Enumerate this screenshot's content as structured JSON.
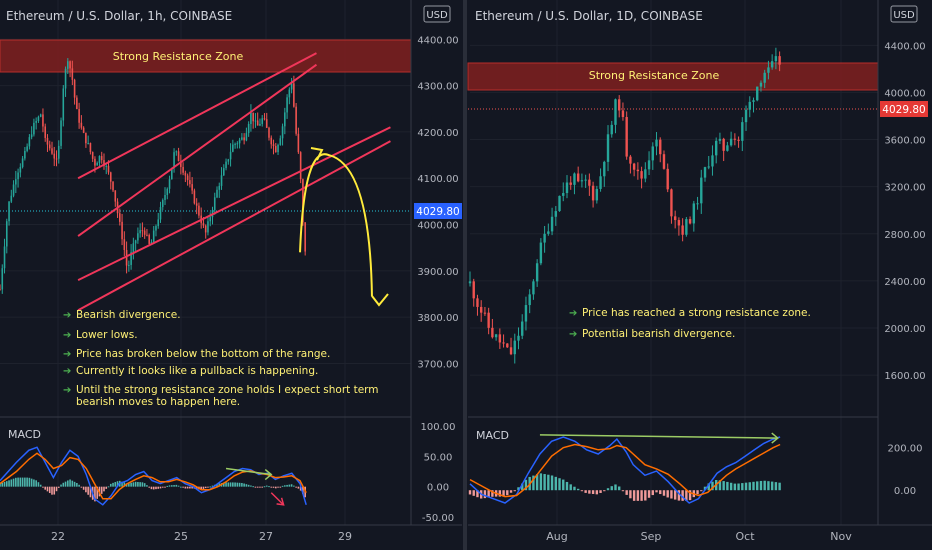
{
  "colors": {
    "background": "#131722",
    "up_candle": "#26a69a",
    "down_candle": "#ef5350",
    "channel": "#f0365a",
    "macd_line": "#2962ff",
    "signal_line": "#ff6d00",
    "resistance_fill": "#7a1f1f",
    "resistance_border": "#c9302c",
    "annotation_text": "#fff176",
    "arrow": "#ffeb3b",
    "bullet": "#4caf50",
    "price_tag": "#e53935",
    "divergence_line": "#9ccc65",
    "last_price_line": "#26c6da"
  },
  "left_panel": {
    "title": "Ethereum / U.S. Dollar, 1h, COINBASE",
    "currency_badge": "USD",
    "resistance_label": "Strong Resistance Zone",
    "price_tag": "4029.80",
    "macd_label": "MACD",
    "notes": [
      "Bearish divergence.",
      "Lower lows.",
      "Price has broken below the bottom of the range.",
      "Currently it looks like a pullback is happening.",
      "Until the strong resistance zone holds I expect short term bearish moves to happen here."
    ]
  },
  "right_panel": {
    "title": "Ethereum / U.S. Dollar, 1D, COINBASE",
    "currency_badge": "USD",
    "resistance_label": "Strong Resistance Zone",
    "price_tag": "4029.80",
    "macd_label": "MACD",
    "notes": [
      "Price has reached a strong resistance zone.",
      "Potential bearish divergence."
    ]
  },
  "chart_data": [
    {
      "type": "candlestick",
      "title": "Ethereum / U.S. Dollar, 1h, COINBASE",
      "y_ticks": [
        "4400.00",
        "4300.00",
        "4200.00",
        "4100.00",
        "4000.00",
        "3900.00",
        "3800.00",
        "3700.00"
      ],
      "x_ticks": [
        "22",
        "25",
        "27",
        "29"
      ],
      "ylim": [
        3660,
        4420
      ],
      "last_price": 4029.8,
      "resistance_zone": [
        4305,
        4375
      ],
      "close_path": [
        [
          0,
          3860
        ],
        [
          4,
          4040
        ],
        [
          8,
          4110
        ],
        [
          12,
          4150
        ],
        [
          16,
          4210
        ],
        [
          20,
          4240
        ],
        [
          22,
          4180
        ],
        [
          25,
          4160
        ],
        [
          28,
          4130
        ],
        [
          31,
          4310
        ],
        [
          33,
          4360
        ],
        [
          35,
          4320
        ],
        [
          37,
          4250
        ],
        [
          40,
          4200
        ],
        [
          43,
          4170
        ],
        [
          46,
          4130
        ],
        [
          49,
          4150
        ],
        [
          52,
          4120
        ],
        [
          55,
          4080
        ],
        [
          57,
          4030
        ],
        [
          60,
          3960
        ],
        [
          62,
          3900
        ],
        [
          64,
          3940
        ],
        [
          67,
          3980
        ],
        [
          70,
          3990
        ],
        [
          73,
          3950
        ],
        [
          76,
          4000
        ],
        [
          80,
          4060
        ],
        [
          83,
          4110
        ],
        [
          85,
          4160
        ],
        [
          88,
          4130
        ],
        [
          91,
          4100
        ],
        [
          94,
          4060
        ],
        [
          97,
          4020
        ],
        [
          100,
          3980
        ],
        [
          103,
          4030
        ],
        [
          106,
          4080
        ],
        [
          110,
          4130
        ],
        [
          113,
          4170
        ],
        [
          116,
          4180
        ],
        [
          119,
          4190
        ],
        [
          122,
          4240
        ],
        [
          125,
          4210
        ],
        [
          128,
          4230
        ],
        [
          131,
          4190
        ],
        [
          134,
          4160
        ],
        [
          137,
          4200
        ],
        [
          140,
          4280
        ],
        [
          142,
          4310
        ],
        [
          144,
          4200
        ],
        [
          146,
          4120
        ],
        [
          148,
          3950
        ],
        [
          149,
          3940
        ]
      ],
      "x_domain": [
        0,
        200
      ],
      "channel_lines": [
        [
          [
            38,
            4100
          ],
          [
            154,
            4370
          ]
        ],
        [
          [
            38,
            3975
          ],
          [
            154,
            4345
          ]
        ],
        [
          [
            38,
            3880
          ],
          [
            190,
            4210
          ]
        ],
        [
          [
            38,
            3815
          ],
          [
            190,
            4180
          ]
        ]
      ],
      "projection": [
        [
          146,
          3940
        ],
        [
          160,
          4150
        ],
        [
          181,
          3845
        ]
      ],
      "macd_ylim": [
        -55,
        110
      ],
      "macd_ticks": [
        "100.00",
        "50.00",
        "0.00",
        "-50.00"
      ],
      "macd": [
        [
          0,
          10
        ],
        [
          8,
          40
        ],
        [
          14,
          60
        ],
        [
          18,
          65
        ],
        [
          22,
          40
        ],
        [
          26,
          15
        ],
        [
          30,
          40
        ],
        [
          34,
          60
        ],
        [
          38,
          50
        ],
        [
          42,
          20
        ],
        [
          46,
          -20
        ],
        [
          50,
          -30
        ],
        [
          54,
          -15
        ],
        [
          58,
          5
        ],
        [
          62,
          10
        ],
        [
          66,
          20
        ],
        [
          70,
          25
        ],
        [
          74,
          10
        ],
        [
          78,
          5
        ],
        [
          82,
          10
        ],
        [
          86,
          15
        ],
        [
          90,
          5
        ],
        [
          94,
          0
        ],
        [
          98,
          -10
        ],
        [
          102,
          -5
        ],
        [
          106,
          5
        ],
        [
          110,
          15
        ],
        [
          114,
          25
        ],
        [
          118,
          30
        ],
        [
          122,
          28
        ],
        [
          126,
          20
        ],
        [
          130,
          22
        ],
        [
          134,
          12
        ],
        [
          138,
          18
        ],
        [
          142,
          22
        ],
        [
          146,
          5
        ],
        [
          149,
          -30
        ]
      ],
      "signal": [
        [
          0,
          5
        ],
        [
          8,
          25
        ],
        [
          14,
          45
        ],
        [
          18,
          55
        ],
        [
          22,
          45
        ],
        [
          26,
          30
        ],
        [
          30,
          35
        ],
        [
          34,
          48
        ],
        [
          38,
          45
        ],
        [
          42,
          30
        ],
        [
          46,
          5
        ],
        [
          50,
          -20
        ],
        [
          54,
          -20
        ],
        [
          58,
          -5
        ],
        [
          62,
          5
        ],
        [
          66,
          12
        ],
        [
          70,
          18
        ],
        [
          74,
          15
        ],
        [
          78,
          8
        ],
        [
          82,
          8
        ],
        [
          86,
          12
        ],
        [
          90,
          8
        ],
        [
          94,
          3
        ],
        [
          98,
          -5
        ],
        [
          102,
          -5
        ],
        [
          106,
          0
        ],
        [
          110,
          8
        ],
        [
          114,
          18
        ],
        [
          118,
          24
        ],
        [
          122,
          26
        ],
        [
          126,
          22
        ],
        [
          130,
          20
        ],
        [
          134,
          15
        ],
        [
          138,
          16
        ],
        [
          142,
          18
        ],
        [
          146,
          10
        ],
        [
          149,
          -10
        ]
      ],
      "macd_divergence": [
        [
          110,
          30
        ],
        [
          132,
          20
        ]
      ],
      "macd_arrow": [
        [
          132,
          -10
        ],
        [
          138,
          -30
        ]
      ]
    },
    {
      "type": "candlestick",
      "title": "Ethereum / U.S. Dollar, 1D, COINBASE",
      "y_ticks": [
        "4400.00",
        "4000.00",
        "3600.00",
        "3200.00",
        "2800.00",
        "2400.00",
        "2000.00",
        "1600.00"
      ],
      "x_ticks": [
        "Aug",
        "Sep",
        "Oct",
        "Nov"
      ],
      "ylim": [
        1440,
        4530
      ],
      "last_price": 4029.8,
      "resistance_zone": [
        4120,
        4430
      ],
      "close_path": [
        [
          0,
          2380
        ],
        [
          3,
          2220
        ],
        [
          6,
          2100
        ],
        [
          9,
          1960
        ],
        [
          12,
          1900
        ],
        [
          15,
          1840
        ],
        [
          17,
          1760
        ],
        [
          20,
          1900
        ],
        [
          23,
          2080
        ],
        [
          26,
          2300
        ],
        [
          29,
          2600
        ],
        [
          32,
          2780
        ],
        [
          35,
          2950
        ],
        [
          38,
          3100
        ],
        [
          41,
          3200
        ],
        [
          44,
          3280
        ],
        [
          47,
          3200
        ],
        [
          50,
          3250
        ],
        [
          53,
          3120
        ],
        [
          55,
          3200
        ],
        [
          58,
          3500
        ],
        [
          61,
          3750
        ],
        [
          63,
          3950
        ],
        [
          65,
          3850
        ],
        [
          67,
          3500
        ],
        [
          70,
          3400
        ],
        [
          73,
          3250
        ],
        [
          76,
          3400
        ],
        [
          79,
          3620
        ],
        [
          82,
          3450
        ],
        [
          84,
          3250
        ],
        [
          86,
          3000
        ],
        [
          88,
          2950
        ],
        [
          91,
          2820
        ],
        [
          94,
          2920
        ],
        [
          97,
          3050
        ],
        [
          100,
          3300
        ],
        [
          103,
          3450
        ],
        [
          106,
          3580
        ],
        [
          109,
          3520
        ],
        [
          112,
          3650
        ],
        [
          115,
          3580
        ],
        [
          118,
          3820
        ],
        [
          121,
          3950
        ],
        [
          124,
          4100
        ],
        [
          126,
          4180
        ],
        [
          128,
          4170
        ],
        [
          131,
          4260
        ],
        [
          133,
          4250
        ],
        [
          134,
          4080
        ]
      ],
      "x_domain": [
        0,
        175
      ],
      "macd_ylim": [
        -140,
        330
      ],
      "macd_ticks": [
        "200.00",
        "0.00"
      ],
      "macd": [
        [
          0,
          30
        ],
        [
          5,
          -20
        ],
        [
          10,
          -40
        ],
        [
          15,
          -60
        ],
        [
          20,
          -20
        ],
        [
          25,
          80
        ],
        [
          30,
          170
        ],
        [
          35,
          230
        ],
        [
          40,
          250
        ],
        [
          45,
          230
        ],
        [
          50,
          190
        ],
        [
          55,
          170
        ],
        [
          60,
          210
        ],
        [
          63,
          240
        ],
        [
          67,
          180
        ],
        [
          70,
          120
        ],
        [
          75,
          70
        ],
        [
          80,
          90
        ],
        [
          85,
          40
        ],
        [
          90,
          -20
        ],
        [
          94,
          -60
        ],
        [
          98,
          -40
        ],
        [
          102,
          20
        ],
        [
          106,
          80
        ],
        [
          110,
          110
        ],
        [
          114,
          130
        ],
        [
          118,
          160
        ],
        [
          122,
          190
        ],
        [
          126,
          220
        ],
        [
          130,
          240
        ],
        [
          133,
          250
        ]
      ],
      "signal": [
        [
          0,
          50
        ],
        [
          5,
          20
        ],
        [
          10,
          -10
        ],
        [
          15,
          -30
        ],
        [
          20,
          -25
        ],
        [
          25,
          20
        ],
        [
          30,
          90
        ],
        [
          35,
          160
        ],
        [
          40,
          200
        ],
        [
          45,
          215
        ],
        [
          50,
          205
        ],
        [
          55,
          190
        ],
        [
          60,
          195
        ],
        [
          63,
          210
        ],
        [
          67,
          200
        ],
        [
          70,
          170
        ],
        [
          75,
          120
        ],
        [
          80,
          100
        ],
        [
          85,
          75
        ],
        [
          90,
          30
        ],
        [
          94,
          -10
        ],
        [
          98,
          -25
        ],
        [
          102,
          -10
        ],
        [
          106,
          30
        ],
        [
          110,
          70
        ],
        [
          114,
          100
        ],
        [
          118,
          125
        ],
        [
          122,
          150
        ],
        [
          126,
          175
        ],
        [
          130,
          200
        ],
        [
          133,
          215
        ]
      ],
      "macd_divergence": [
        [
          30,
          260
        ],
        [
          132,
          245
        ]
      ]
    }
  ]
}
